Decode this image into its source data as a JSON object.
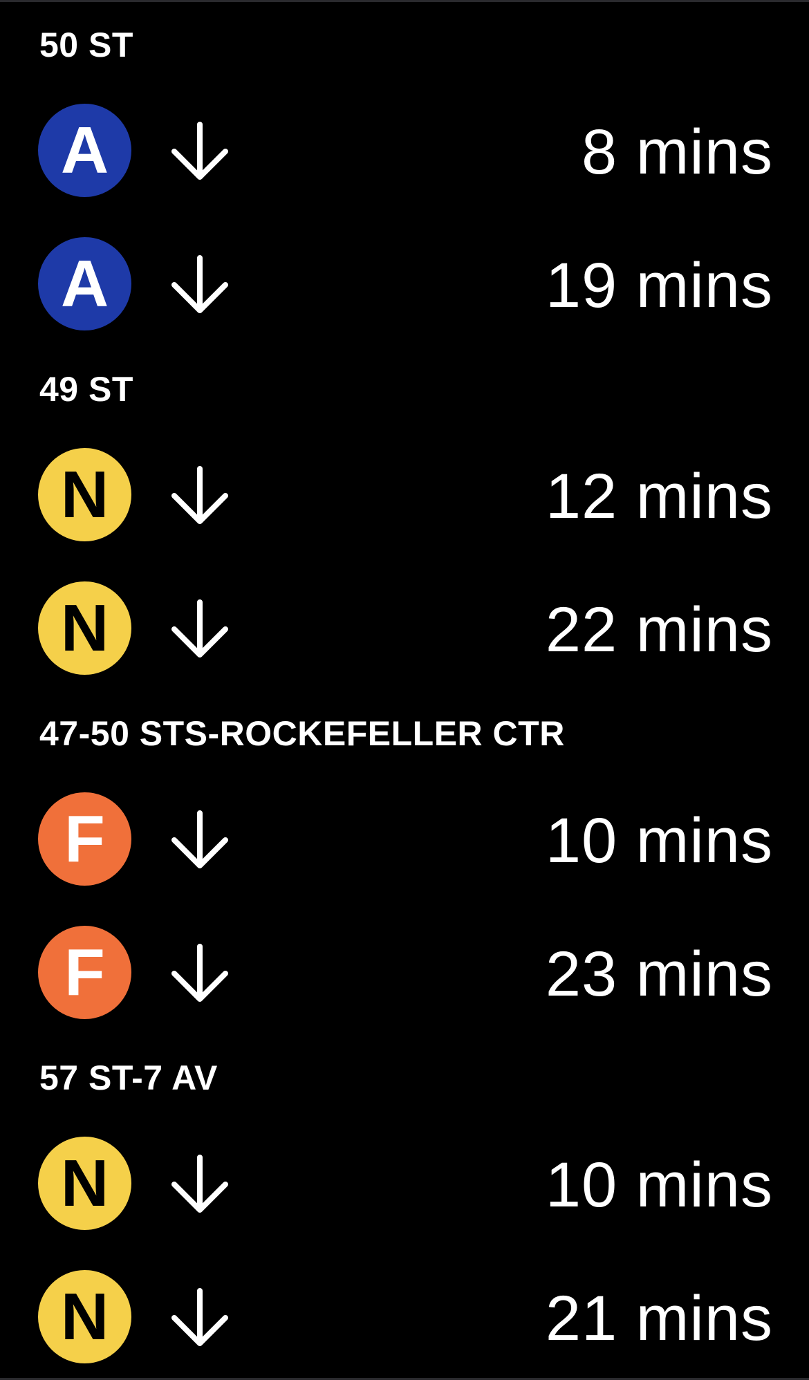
{
  "colors": {
    "background": "#000000",
    "text": "#ffffff",
    "line_A": "#1e3aa8",
    "line_N": "#f5d04a",
    "line_F": "#f0703a"
  },
  "stations": [
    {
      "name": "50 ST",
      "arrivals": [
        {
          "line": "A",
          "direction_icon": "arrow-down-icon",
          "time": "8 mins"
        },
        {
          "line": "A",
          "direction_icon": "arrow-down-icon",
          "time": "19 mins"
        }
      ]
    },
    {
      "name": "49 ST",
      "arrivals": [
        {
          "line": "N",
          "direction_icon": "arrow-down-icon",
          "time": "12 mins"
        },
        {
          "line": "N",
          "direction_icon": "arrow-down-icon",
          "time": "22 mins"
        }
      ]
    },
    {
      "name": "47-50 STS-ROCKEFELLER CTR",
      "arrivals": [
        {
          "line": "F",
          "direction_icon": "arrow-down-icon",
          "time": "10 mins"
        },
        {
          "line": "F",
          "direction_icon": "arrow-down-icon",
          "time": "23 mins"
        }
      ]
    },
    {
      "name": "57 ST-7 AV",
      "arrivals": [
        {
          "line": "N",
          "direction_icon": "arrow-down-icon",
          "time": "10 mins"
        },
        {
          "line": "N",
          "direction_icon": "arrow-down-icon",
          "time": "21 mins"
        }
      ]
    }
  ]
}
